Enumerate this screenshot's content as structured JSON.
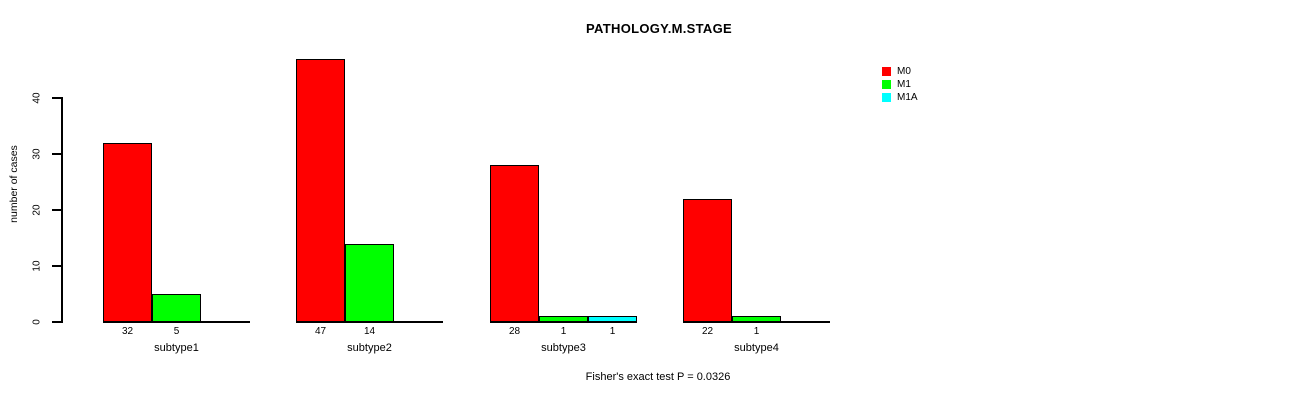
{
  "chart_data": {
    "type": "bar",
    "title": "PATHOLOGY.M.STAGE",
    "ylabel": "number of cases",
    "xlabel": "",
    "categories": [
      "subtype1",
      "subtype2",
      "subtype3",
      "subtype4"
    ],
    "series": [
      {
        "name": "M0",
        "color": "#ff0000",
        "values": [
          32,
          47,
          28,
          22
        ]
      },
      {
        "name": "M1",
        "color": "#00ff00",
        "values": [
          5,
          14,
          1,
          1
        ]
      },
      {
        "name": "M1A",
        "color": "#00ffff",
        "values": [
          0,
          0,
          1,
          0
        ]
      }
    ],
    "yticks": [
      0,
      10,
      20,
      30,
      40
    ],
    "ylim": [
      0,
      47
    ],
    "grid": false,
    "legend_position": "top-right",
    "bar_value_labels": true,
    "annotation": "Fisher's exact test P = 0.0326",
    "background": "#ffffff",
    "axis_color": "#000000"
  }
}
